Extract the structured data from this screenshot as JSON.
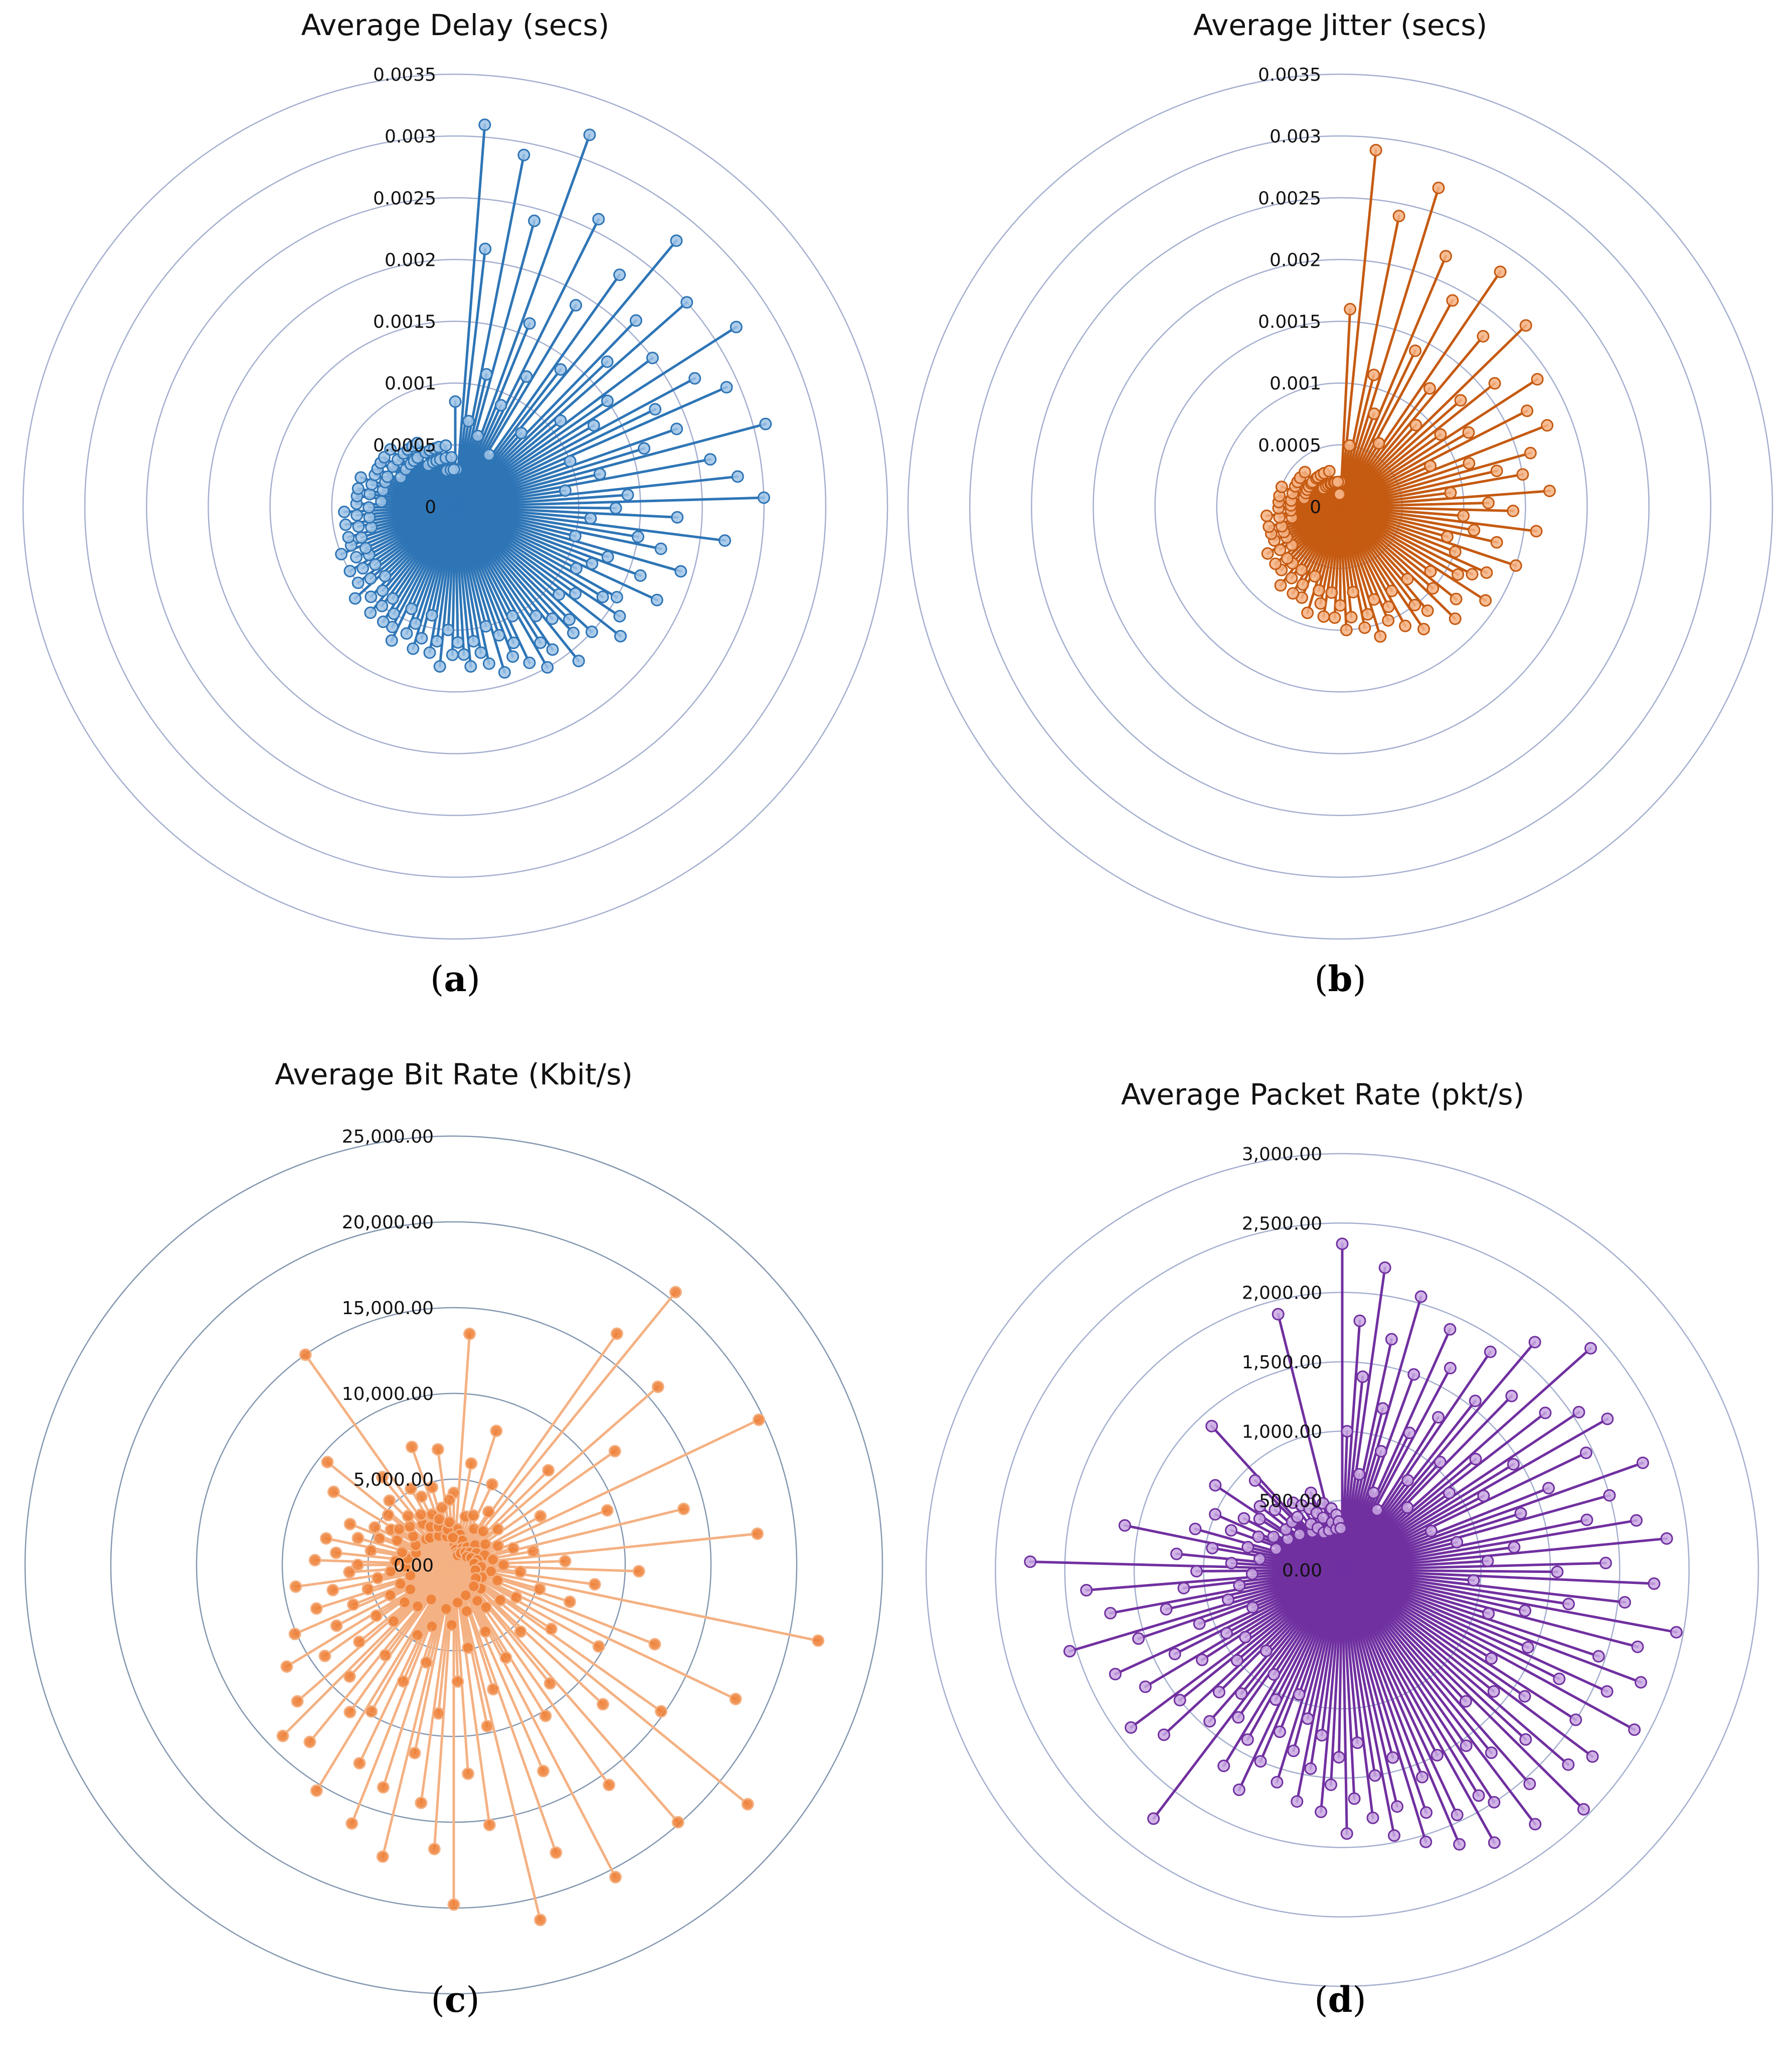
{
  "figure": {
    "panels": [
      {
        "caption_letter": "a",
        "color": "#2e75b6",
        "ring_color": "#a4afcf",
        "dot_fill": "#9dc3e6",
        "chart_data": {
          "type": "radar",
          "title": "Average Delay (secs)",
          "rmax": 0.0035,
          "tick_values": [
            0,
            0.0005,
            0.001,
            0.0015,
            0.002,
            0.0025,
            0.003,
            0.0035
          ],
          "tick_labels": [
            "0",
            "0.0005",
            "0.001",
            "0.0015",
            "0.002",
            "0.0025",
            "0.003",
            "0.0035"
          ],
          "series": [
            {
              "name": "Average Delay",
              "values": [
                0.00085,
                0.0003,
                0.0031,
                0.0021,
                0.0007,
                0.0029,
                0.0011,
                0.0024,
                0.0006,
                0.0032,
                0.0016,
                0.0009,
                0.0026,
                0.0012,
                0.0019,
                0.0005,
                0.0023,
                0.0014,
                0.0028,
                0.0008,
                0.0021,
                0.0017,
                0.0025,
                0.0011,
                0.002,
                0.0015,
                0.0027,
                0.0013,
                0.0022,
                0.0018,
                0.0024,
                0.001,
                0.0019,
                0.0016,
                0.0026,
                0.0012,
                0.0021,
                0.0009,
                0.0023,
                0.0014,
                0.0025,
                0.0013,
                0.0018,
                0.0011,
                0.0022,
                0.0015,
                0.0017,
                0.001,
                0.0019,
                0.0013,
                0.0016,
                0.0012,
                0.0018,
                0.0011,
                0.0015,
                0.0014,
                0.0016,
                0.0012,
                0.0017,
                0.0011,
                0.0015,
                0.0013,
                0.0014,
                0.0012,
                0.0016,
                0.0011,
                0.0014,
                0.0013,
                0.0015,
                0.001,
                0.0014,
                0.0012,
                0.0013,
                0.0011,
                0.0014,
                0.001,
                0.0013,
                0.0012,
                0.0011,
                0.0013,
                0.0012,
                0.0011,
                0.0012,
                0.001,
                0.0013,
                0.0011,
                0.0012,
                0.0009,
                0.0011,
                0.0012,
                0.001,
                0.0011,
                0.0009,
                0.0012,
                0.0011,
                0.001,
                0.0011,
                0.0009,
                0.001,
                0.0011,
                0.0009,
                0.001,
                0.0008,
                0.0011,
                0.0009,
                0.001,
                0.0008,
                0.0009,
                0.001,
                0.0008,
                0.0009,
                0.0008,
                0.001,
                0.0009,
                0.0008,
                0.0009,
                0.0007,
                0.0008,
                0.0009,
                0.0007,
                0.0008,
                0.0009,
                0.0007,
                0.0008,
                0.0006,
                0.0008,
                0.0007,
                0.0008,
                0.0006,
                0.0007,
                0.0008,
                0.0006,
                0.0007,
                0.0006,
                0.0007,
                0.0005,
                0.0007,
                0.0006,
                0.0007,
                0.0005,
                0.0006,
                0.0007,
                0.0005,
                0.0006,
                0.0005,
                0.0006,
                0.0005,
                0.0006,
                0.0004,
                0.0006,
                0.0005,
                0.0004,
                0.0005,
                0.0004,
                0.0005,
                0.0004,
                0.0005,
                0.0003,
                0.0004,
                0.0005,
                0.0003,
                0.0004,
                0.0003
              ]
            }
          ]
        }
      },
      {
        "caption_letter": "b",
        "color": "#c55a11",
        "ring_color": "#a4afcf",
        "dot_fill": "#f4b183",
        "chart_data": {
          "type": "radar",
          "title": "Average Jitter (secs)",
          "rmax": 0.0035,
          "tick_values": [
            0,
            0.0005,
            0.001,
            0.0015,
            0.002,
            0.0025,
            0.003,
            0.0035
          ],
          "tick_labels": [
            "0",
            "0.0005",
            "0.001",
            "0.0015",
            "0.002",
            "0.0025",
            "0.003",
            "0.0035"
          ],
          "series": [
            {
              "name": "Average Jitter",
              "values": [
                0.0002,
                0.0016,
                0.0029,
                0.0005,
                0.0024,
                0.0011,
                0.0027,
                0.0008,
                0.0022,
                0.0014,
                0.0019,
                0.0006,
                0.0023,
                0.0012,
                0.0018,
                0.0009,
                0.0021,
                0.0013,
                0.0016,
                0.001,
                0.0019,
                0.0012,
                0.0017,
                0.0008,
                0.0018,
                0.0011,
                0.0016,
                0.0013,
                0.0015,
                0.0009,
                0.0017,
                0.0012,
                0.0014,
                0.001,
                0.0016,
                0.0011,
                0.0013,
                0.0009,
                0.0015,
                0.001,
                0.0013,
                0.0012,
                0.0011,
                0.0014,
                0.0009,
                0.0012,
                0.001,
                0.0013,
                0.0008,
                0.0011,
                0.001,
                0.0012,
                0.0008,
                0.0011,
                0.0009,
                0.001,
                0.0008,
                0.0011,
                0.0009,
                0.001,
                0.0007,
                0.0009,
                0.001,
                0.0008,
                0.0009,
                0.0007,
                0.0009,
                0.0008,
                0.0007,
                0.0009,
                0.0006,
                0.0008,
                0.0007,
                0.0008,
                0.0006,
                0.0007,
                0.0008,
                0.0006,
                0.0007,
                0.0006,
                0.0007,
                0.0005,
                0.0006,
                0.0007,
                0.0005,
                0.0006,
                0.0005,
                0.0006,
                0.0005,
                0.0006,
                0.0004,
                0.0005,
                0.0006,
                0.0004,
                0.0005,
                0.0004,
                0.0005,
                0.0004,
                0.0005,
                0.0003,
                0.0004,
                0.0005,
                0.0003,
                0.0004,
                0.0003,
                0.0004,
                0.0003,
                0.0004,
                0.0003,
                0.0003,
                0.0004,
                0.0002,
                0.0003,
                0.0003,
                0.0002,
                0.0003,
                0.0002,
                0.0003,
                0.0002,
                0.0002,
                0.0003,
                0.0002,
                0.0002,
                0.0001,
                0.0002,
                0.0001
              ]
            }
          ]
        }
      },
      {
        "caption_letter": "c",
        "color": "#f4b183",
        "ring_color": "#8497b0",
        "dot_fill": "#ed7d31",
        "chart_data": {
          "type": "radar",
          "title": "Average Bit Rate (Kbit/s)",
          "rmax": 25000,
          "tick_values": [
            0,
            5000,
            10000,
            15000,
            20000,
            25000
          ],
          "tick_labels": [
            "0.00",
            "5,000.00",
            "10,000.00",
            "15,000.00",
            "20,000.00",
            "25,000.00"
          ],
          "series": [
            {
              "name": "Average Bit Rate",
              "values": [
                4200,
                1200,
                13500,
                2100,
                900,
                6000,
                1800,
                2900,
                700,
                8200,
                1500,
                3100,
                600,
                5200,
                1100,
                2400,
                800,
                3700,
                16500,
                1300,
                20500,
                2600,
                1000,
                7800,
                1700,
                15800,
                3300,
                1200,
                11500,
                2200,
                900,
                5800,
                1500,
                19700,
                2800,
                1100,
                9500,
                1900,
                3600,
                13800,
                1400,
                4700,
                2300,
                17800,
                1200,
                6500,
                2900,
                10800,
                1600,
                3900,
                8300,
                2200,
                21700,
                1300,
                5200,
                7100,
                2700,
                12600,
                1800,
                18200,
                4100,
                9700,
                1500,
                6800,
                14800,
                3400,
                22100,
                2100,
                11900,
                5500,
                1700,
                19900,
                8900,
                3100,
                15700,
                2500,
                10300,
                6200,
                20500,
                4300,
                13100,
                1900,
                17800,
                7600,
                2800,
                21300,
                9600,
                4900,
                15300,
                2200,
                12200,
                6800,
                19800,
                3500,
                16600,
                8700,
                14000,
                2600,
                11200,
                17500,
                5900,
                13600,
                3800,
                16200,
                7400,
                12800,
                4600,
                9800,
                15400,
                2400,
                10500,
                6600,
                13300,
                3200,
                8900,
                14100,
                4800,
                12100,
                7100,
                3600,
                9200,
                5400,
                11400,
                2900,
                7700,
                4100,
                10100,
                6300,
                3300,
                8400,
                5200,
                2600,
                7200,
                4500,
                9300,
                3700,
                6100,
                2800,
                5600,
                8100,
                3400,
                6900,
                2700,
                4900,
                7600,
                3100,
                5800,
                2300,
                4600,
                6500,
                3600,
                5100,
                2500,
                4200,
                8200,
                3800,
                2900,
                4800,
                9500,
                3400,
                2200,
                5300,
                3900,
                2100,
                6600,
                3000,
                15000,
                3500,
                2600,
                5100,
                1900,
                4400,
                3200,
                2400,
                7300,
                2800,
                4700,
                1700,
                3400,
                2100,
                6800,
                2500,
                3800,
                1600
              ]
            }
          ]
        }
      },
      {
        "caption_letter": "d",
        "color": "#7030a0",
        "ring_color": "#a4afcf",
        "dot_fill": "#c9a8e2",
        "chart_data": {
          "type": "radar",
          "title": "Average Packet Rate (pkt/s)",
          "rmax": 3000,
          "tick_values": [
            0,
            500,
            1000,
            1500,
            2000,
            2500,
            3000
          ],
          "tick_labels": [
            "0.00",
            "500.00",
            "1,000.00",
            "1,500.00",
            "2,000.00",
            "2,500.00",
            "3,000.00"
          ],
          "series": [
            {
              "name": "Average Packet Rate",
              "values": [
                2350,
                1000,
                1800,
                1400,
                2200,
                700,
                1700,
                1200,
                2050,
                900,
                1500,
                600,
                1900,
                1100,
                1650,
                500,
                1300,
                1900,
                800,
                1550,
                2150,
                1050,
                1750,
                650,
                2400,
                1250,
                1850,
                950,
                2050,
                1450,
                2200,
                1150,
                1950,
                700,
                1600,
                2300,
                1350,
                2000,
                850,
                1800,
                2150,
                1250,
                2350,
                1050,
                1900,
                1550,
                2250,
                950,
                2050,
                1650,
                2450,
                1350,
                2200,
                1100,
                1950,
                2300,
                1450,
                2100,
                1750,
                2400,
                1250,
                2000,
                1600,
                2250,
                1400,
                2150,
                1800,
                2450,
                1300,
                2050,
                1700,
                2300,
                1550,
                2000,
                1900,
                2250,
                1500,
                1950,
                2150,
                1600,
                1850,
                2050,
                1400,
                1750,
                1950,
                1500,
                1800,
                1250,
                1650,
                1900,
                1350,
                1550,
                1750,
                1200,
                1450,
                1700,
                1100,
                1350,
                1600,
                950,
                1250,
                1500,
                1750,
                1050,
                1400,
                1650,
                900,
                1300,
                2250,
                1150,
                1450,
                800,
                1250,
                1750,
                1000,
                1500,
                1900,
                850,
                1200,
                1650,
                950,
                1350,
                1800,
                700,
                1100,
                1550,
                2050,
                850,
                1300,
                1700,
                750,
                1150,
                1850,
                650,
                1050,
                2250,
                800,
                1200,
                600,
                950,
                1600,
                700,
                1100,
                500,
                850,
                650,
                1000,
                550,
                800,
                450,
                700,
                1100,
                500,
                750,
                400,
                650,
                500,
                900,
                1400,
                500,
                350,
                600,
                400,
                550,
                350,
                500,
                300,
                450,
                600,
                400,
                300,
                500,
                1900,
                350,
                450,
                300,
                400,
                350,
                300
              ]
            }
          ]
        }
      }
    ]
  }
}
